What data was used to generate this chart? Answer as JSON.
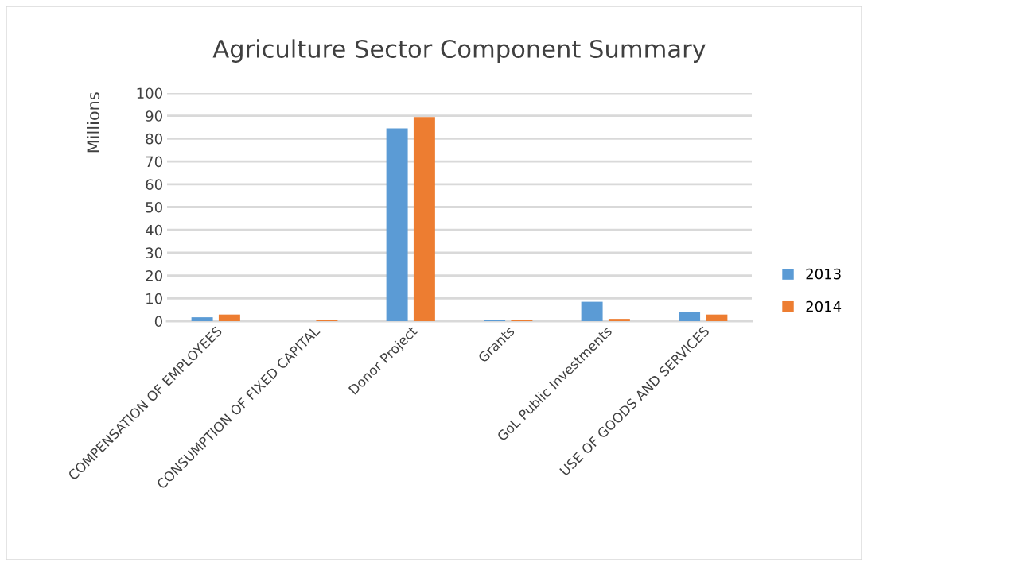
{
  "chart_data": {
    "type": "bar",
    "title": "Agriculture Sector Component Summary",
    "ylabel": "Millions",
    "categories": [
      "COMPENSATION OF EMPLOYEES",
      "CONSUMPTION OF FIXED CAPITAL",
      "Donor Project",
      "Grants",
      "GoL Public Investments",
      "USE OF GOODS AND SERVICES"
    ],
    "series": [
      {
        "name": "2013",
        "color": "#5b9bd5",
        "values": [
          1.7,
          0.0,
          84.5,
          0.4,
          8.5,
          3.9
        ]
      },
      {
        "name": "2014",
        "color": "#ed7d31",
        "values": [
          2.9,
          0.6,
          89.5,
          0.5,
          1.0,
          2.9
        ]
      }
    ],
    "ylim": [
      0,
      100
    ],
    "yticks": [
      0,
      10,
      20,
      30,
      40,
      50,
      60,
      70,
      80,
      90,
      100
    ],
    "grid": "y",
    "legend": "right"
  }
}
